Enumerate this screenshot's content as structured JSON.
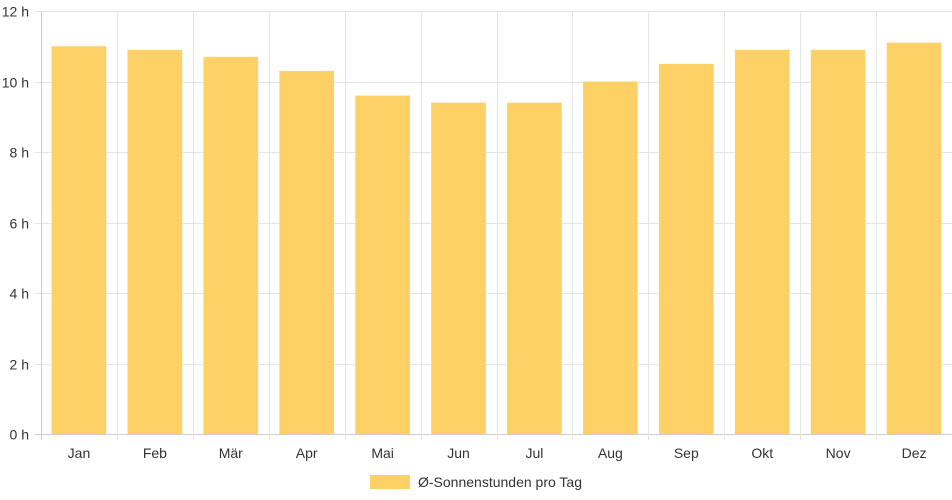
{
  "chart_data": {
    "type": "bar",
    "categories": [
      "Jan",
      "Feb",
      "Mär",
      "Apr",
      "Mai",
      "Jun",
      "Jul",
      "Aug",
      "Sep",
      "Okt",
      "Nov",
      "Dez"
    ],
    "series": [
      {
        "name": "Ø-Sonnenstunden pro Tag",
        "values": [
          11.0,
          10.9,
          10.7,
          10.3,
          9.6,
          9.4,
          9.4,
          10.0,
          10.5,
          10.9,
          10.9,
          11.1
        ]
      }
    ],
    "ylim": [
      0,
      12
    ],
    "yticks": [
      0,
      2,
      4,
      6,
      8,
      10,
      12
    ],
    "ytick_unit": "h",
    "grid": true,
    "legend_position": "bottom-center",
    "colors": {
      "bar": "#FDD166",
      "grid": "#E5E5E5",
      "axis": "#CCCCCC",
      "text": "#333333"
    }
  }
}
